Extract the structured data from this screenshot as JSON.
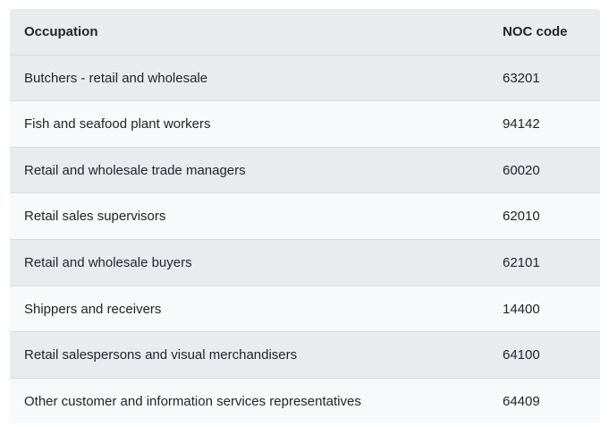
{
  "table": {
    "columns": [
      {
        "label": "Occupation"
      },
      {
        "label": "NOC code"
      }
    ],
    "rows": [
      {
        "occupation": "Butchers - retail and wholesale",
        "noc_code": "63201"
      },
      {
        "occupation": "Fish and seafood plant workers",
        "noc_code": "94142"
      },
      {
        "occupation": "Retail and wholesale trade managers",
        "noc_code": "60020"
      },
      {
        "occupation": "Retail sales supervisors",
        "noc_code": "62010"
      },
      {
        "occupation": "Retail and wholesale buyers",
        "noc_code": "62101"
      },
      {
        "occupation": "Shippers and receivers",
        "noc_code": "14400"
      },
      {
        "occupation": "Retail salespersons and visual merchandisers",
        "noc_code": "64100"
      },
      {
        "occupation": "Other customer and information services representatives",
        "noc_code": "64409"
      }
    ],
    "colors": {
      "stripe_bg": "#e9ecef",
      "row_bg": "#f8f9fa",
      "border": "#d7dade",
      "text": "#212529",
      "page_bg": "#ffffff"
    }
  }
}
